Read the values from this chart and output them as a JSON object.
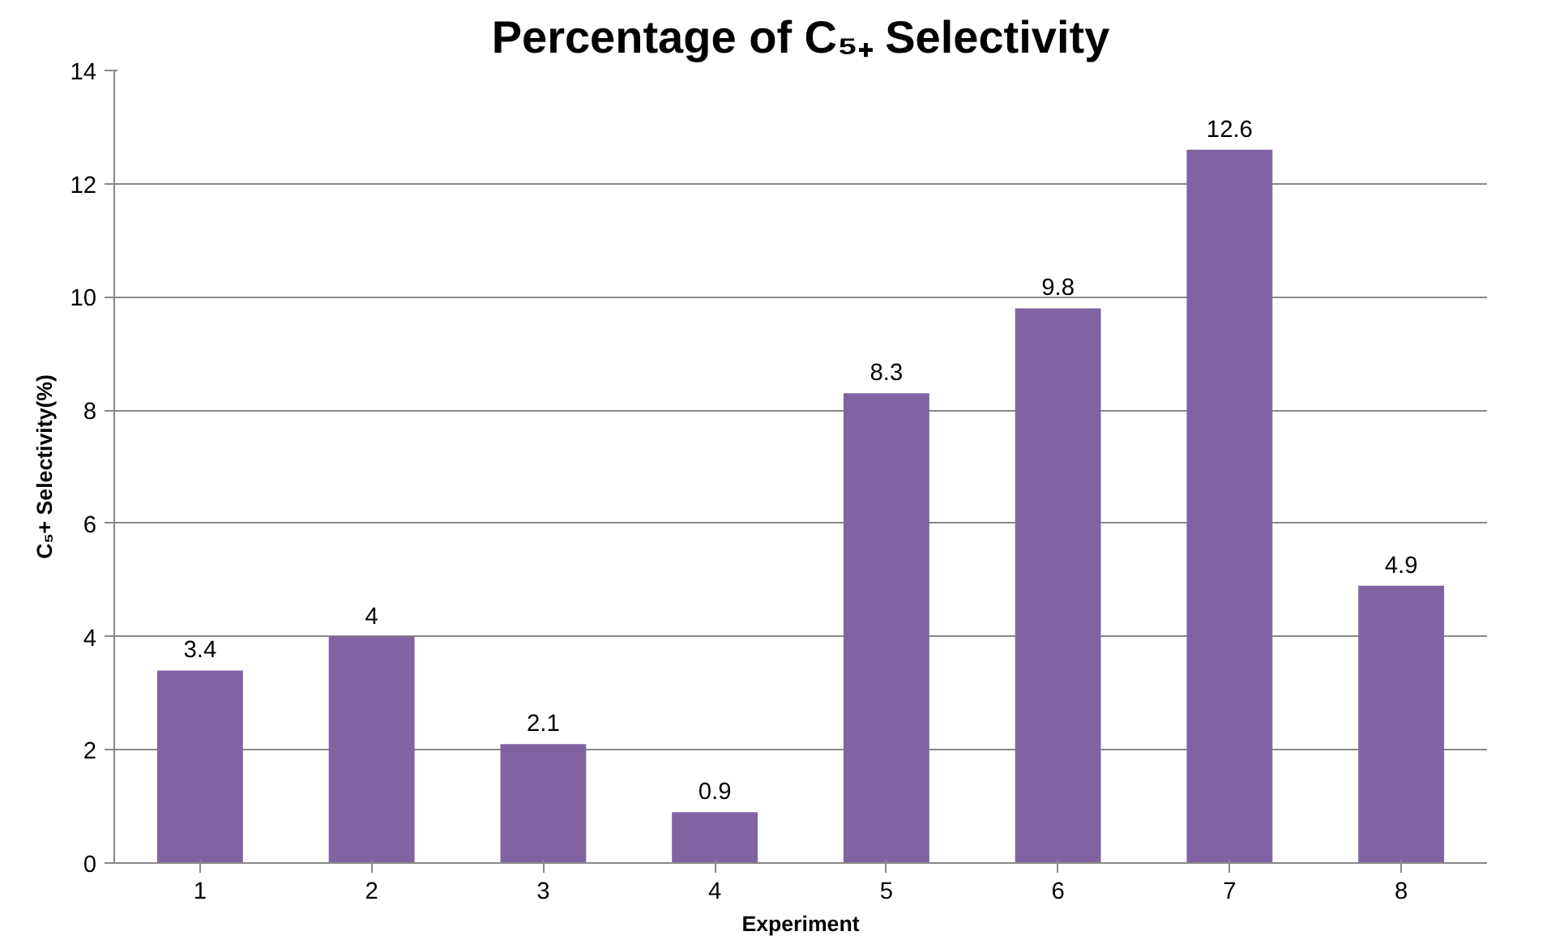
{
  "chart_data": {
    "type": "bar",
    "title": "Percentage of C₅₊ Selectivity",
    "xlabel": "Experiment",
    "ylabel": "C₅+ Selectivity(%)",
    "categories": [
      "1",
      "2",
      "3",
      "4",
      "5",
      "6",
      "7",
      "8"
    ],
    "values": [
      3.4,
      4,
      2.1,
      0.9,
      8.3,
      9.8,
      12.6,
      4.9
    ],
    "color": "#8064a2",
    "ylim": [
      0,
      14
    ],
    "yticks": [
      0,
      2,
      4,
      6,
      8,
      10,
      12,
      14
    ],
    "grid": "y",
    "data_labels": true
  }
}
